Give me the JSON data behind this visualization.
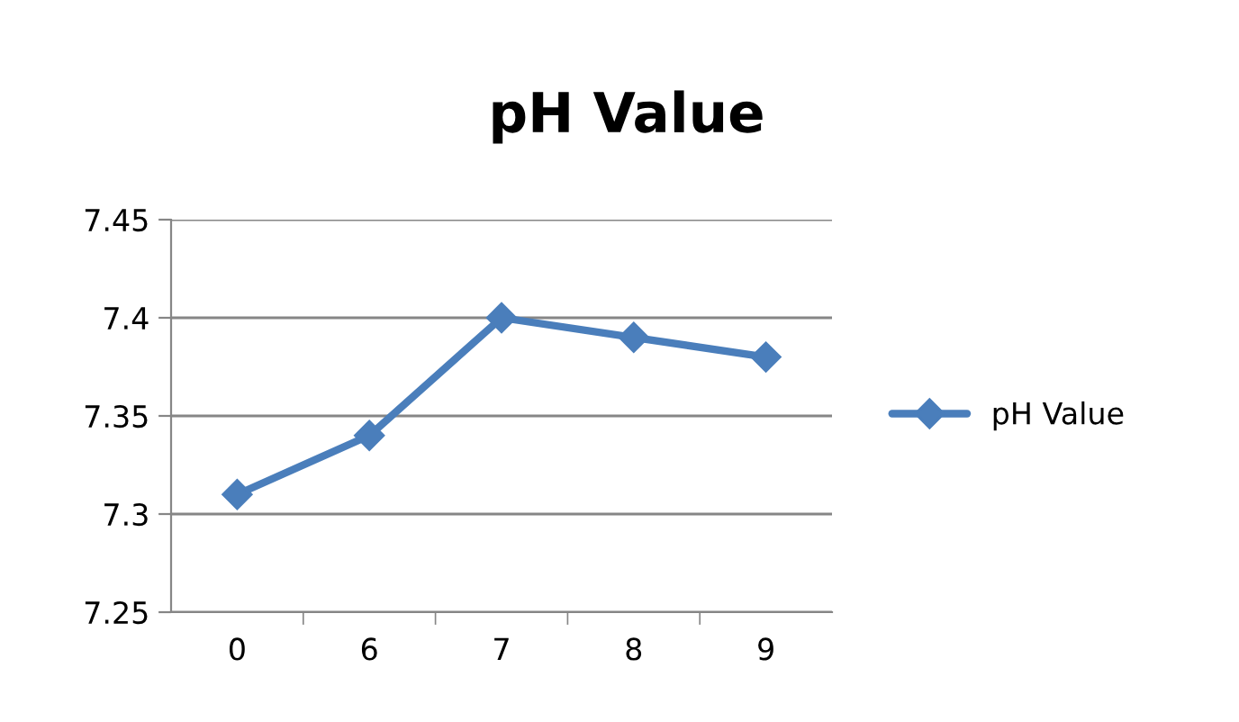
{
  "chart_data": {
    "type": "line",
    "title": "pH Value",
    "categories": [
      "0",
      "6",
      "7",
      "8",
      "9"
    ],
    "series": [
      {
        "name": "pH Value",
        "color": "#4a7ebb",
        "values": [
          7.31,
          7.34,
          7.4,
          7.39,
          7.38
        ]
      }
    ],
    "ylim": [
      7.25,
      7.45
    ],
    "yticks": [
      7.25,
      7.3,
      7.35,
      7.4,
      7.45
    ],
    "grid": "y",
    "legend": "right",
    "marker": "diamond",
    "line_style": "solid"
  }
}
